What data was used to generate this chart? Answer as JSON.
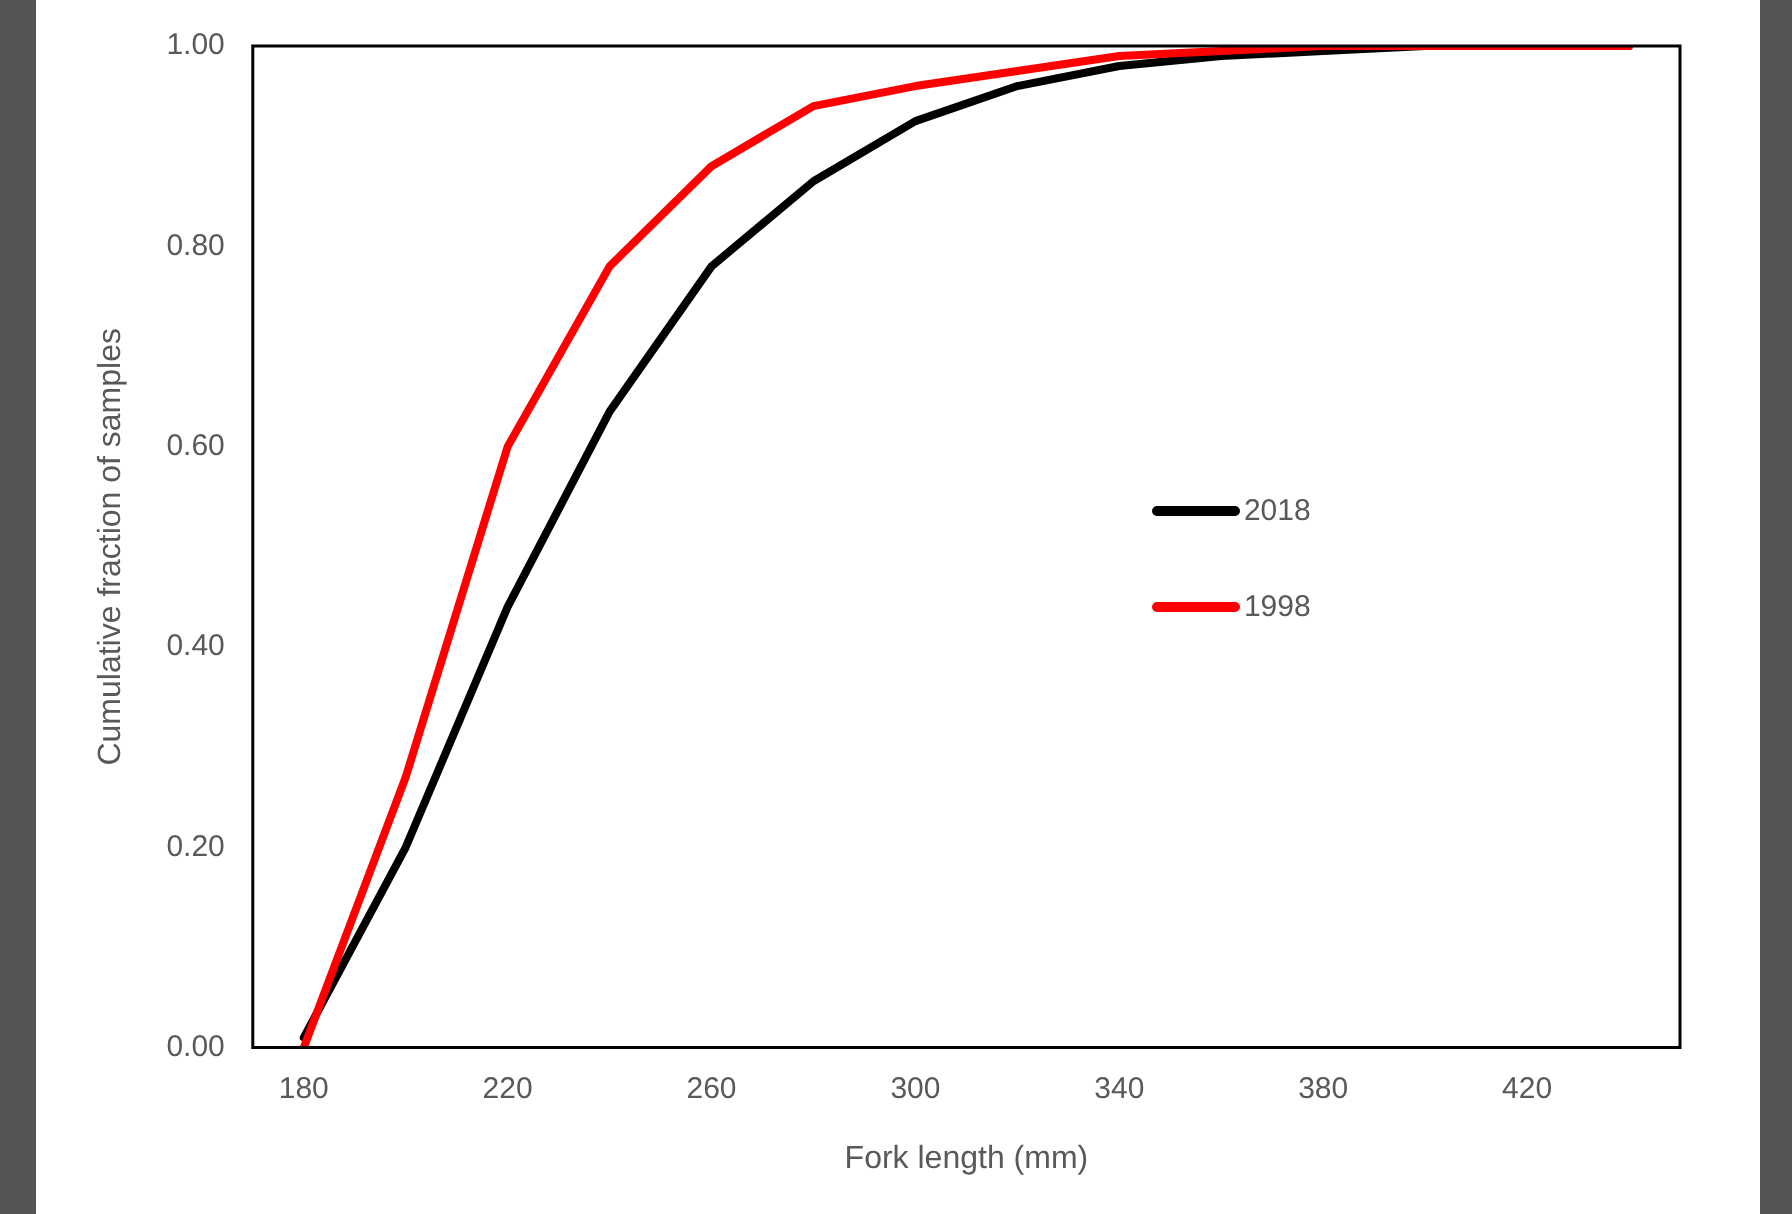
{
  "chart_data": {
    "type": "line",
    "xlabel": "Fork length (mm)",
    "ylabel": "Cumulative fraction of samples",
    "categories": [
      "180",
      null,
      "220",
      null,
      "260",
      null,
      "300",
      null,
      "340",
      null,
      "380",
      null,
      "420",
      null
    ],
    "series": [
      {
        "name": "2018",
        "color": "#000000",
        "values": [
          0.01,
          0.2,
          0.44,
          0.635,
          0.78,
          0.865,
          0.925,
          0.96,
          0.98,
          0.99,
          0.995,
          1.0,
          1.0,
          1.0
        ]
      },
      {
        "name": "1998",
        "color": "#ff0000",
        "values": [
          0,
          0.27,
          0.6,
          0.78,
          0.88,
          0.94,
          0.96,
          0.975,
          0.99,
          0.995,
          1.0,
          1.0,
          1.0,
          1.0
        ]
      }
    ],
    "ylim": [
      0,
      1
    ],
    "yticks": [
      {
        "value": 0,
        "label": "0.00"
      },
      {
        "value": 0.2,
        "label": "0.20"
      },
      {
        "value": 0.4,
        "label": "0.40"
      },
      {
        "value": 0.6,
        "label": "0.60"
      },
      {
        "value": 0.8,
        "label": "0.80"
      },
      {
        "value": 1,
        "label": "1.00"
      }
    ],
    "grid": false,
    "legend": "right",
    "marker": "none",
    "line_style": "solid"
  }
}
